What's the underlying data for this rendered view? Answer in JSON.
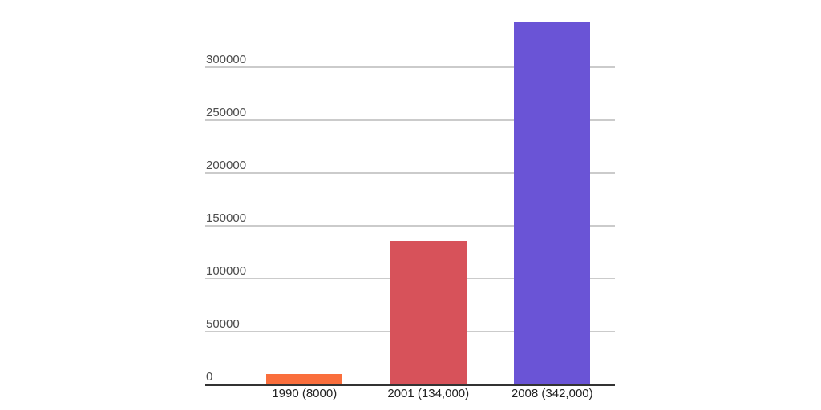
{
  "chart_data": {
    "type": "bar",
    "categories": [
      "1990 (8000)",
      "2001 (134,000)",
      "2008 (342,000)"
    ],
    "values": [
      8000,
      134000,
      342000
    ],
    "bar_colors": [
      "#FA6E3C",
      "#D7525A",
      "#6A54D6"
    ],
    "y_ticks": [
      {
        "value": 0,
        "label": "0"
      },
      {
        "value": 50000,
        "label": "50000"
      },
      {
        "value": 100000,
        "label": "100000"
      },
      {
        "value": 150000,
        "label": "150000"
      },
      {
        "value": 200000,
        "label": "200000"
      },
      {
        "value": 250000,
        "label": "250000"
      },
      {
        "value": 300000,
        "label": "300000"
      }
    ],
    "ylim": [
      0,
      350000
    ],
    "grid": true,
    "legend": "none"
  },
  "style_colors": {
    "background": "#ffffff",
    "gridline": "#cbcbcb",
    "axis_line": "#333333",
    "tick_label": "#4d4d4d",
    "category_label": "#212121"
  }
}
